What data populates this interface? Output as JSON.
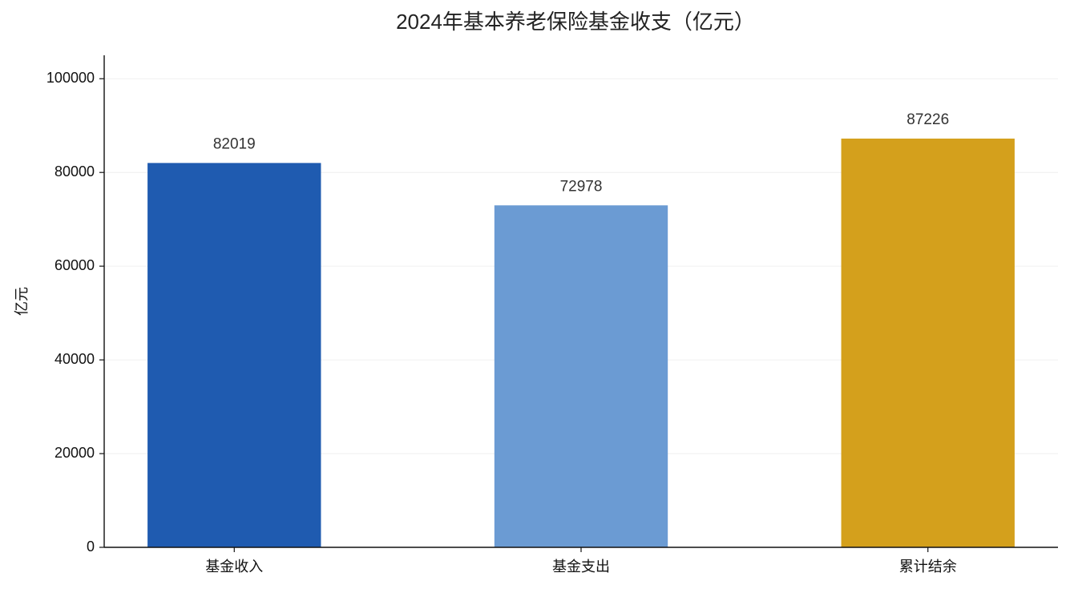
{
  "chart_data": {
    "type": "bar",
    "title": "2024年基本养老保险基金收支（亿元）",
    "y_label": "亿元",
    "categories": [
      "基金收入",
      "基金支出",
      "累计结余"
    ],
    "values": [
      82019,
      72978,
      87226
    ],
    "colors": [
      "#1f5bb0",
      "#6b9bd3",
      "#d4a01c"
    ],
    "ylim": [
      0,
      105000
    ],
    "yticks": [
      0,
      20000,
      40000,
      60000,
      80000,
      100000
    ],
    "grid": true
  }
}
